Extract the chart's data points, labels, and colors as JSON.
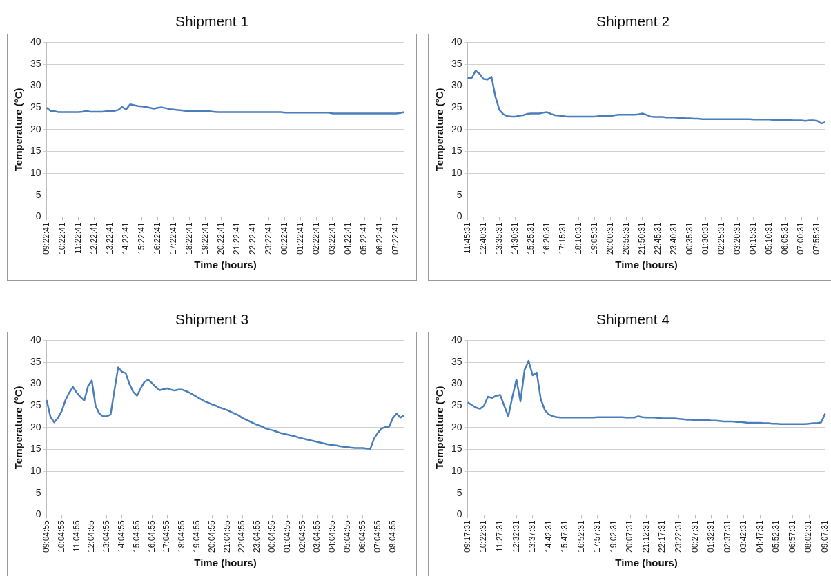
{
  "chart_data": [
    {
      "type": "line",
      "title": "Shipment 1",
      "xlabel": "Time (hours)",
      "ylabel": "Temperature (°C)",
      "color": "#4a7ebb",
      "marker": "none",
      "grid": "y",
      "ylim": [
        0,
        40
      ],
      "yticks": [
        0,
        5,
        10,
        15,
        20,
        25,
        30,
        35,
        40
      ],
      "categories": [
        "09:22:41",
        null,
        null,
        null,
        "10:22:41",
        null,
        null,
        null,
        "11:22:41",
        null,
        null,
        null,
        "12:22:41",
        null,
        null,
        null,
        "13:22:41",
        null,
        null,
        null,
        "14:22:41",
        null,
        null,
        null,
        "15:22:41",
        null,
        null,
        null,
        "16:22:41",
        null,
        null,
        null,
        "17:22:41",
        null,
        null,
        null,
        "18:22:41",
        null,
        null,
        null,
        "19:22:41",
        null,
        null,
        null,
        "20:22:41",
        null,
        null,
        null,
        "21:22:41",
        null,
        null,
        null,
        "22:22:41",
        null,
        null,
        null,
        "23:22:41",
        null,
        null,
        null,
        "00:22:41",
        null,
        null,
        null,
        "01:22:41",
        null,
        null,
        null,
        "02:22:41",
        null,
        null,
        null,
        "03:22:41",
        null,
        null,
        null,
        "04:22:41",
        null,
        null,
        null,
        "05:22:41",
        null,
        null,
        null,
        "06:22:41",
        null,
        null,
        null,
        "07:22:41",
        null,
        null
      ],
      "values": [
        25,
        24.3,
        24.2,
        24,
        24,
        24,
        24,
        24,
        24,
        24.1,
        24.3,
        24.1,
        24.1,
        24.1,
        24.1,
        24.2,
        24.3,
        24.3,
        24.5,
        25.2,
        24.6,
        25.8,
        25.6,
        25.4,
        25.3,
        25.2,
        25,
        24.8,
        25,
        25.1,
        24.9,
        24.7,
        24.6,
        24.5,
        24.4,
        24.3,
        24.3,
        24.3,
        24.2,
        24.2,
        24.2,
        24.2,
        24.1,
        24,
        24,
        24,
        24,
        24,
        24,
        24,
        24,
        24,
        24,
        24,
        24,
        24,
        24,
        24,
        24,
        24,
        23.9,
        23.9,
        23.9,
        23.9,
        23.9,
        23.9,
        23.9,
        23.9,
        23.9,
        23.9,
        23.9,
        23.9,
        23.7,
        23.7,
        23.7,
        23.7,
        23.7,
        23.7,
        23.7,
        23.7,
        23.7,
        23.7,
        23.7,
        23.7,
        23.7,
        23.7,
        23.7,
        23.7,
        23.7,
        23.8,
        24
      ]
    },
    {
      "type": "line",
      "title": "Shipment 2",
      "xlabel": "Time (hours)",
      "ylabel": "Temperature (°C)",
      "color": "#4a7ebb",
      "marker": "none",
      "grid": "y",
      "ylim": [
        0,
        40
      ],
      "yticks": [
        0,
        5,
        10,
        15,
        20,
        25,
        30,
        35,
        40
      ],
      "categories": [
        "11:45:31",
        null,
        null,
        null,
        "12:40:31",
        null,
        null,
        null,
        "13:35:31",
        null,
        null,
        null,
        "14:30:31",
        null,
        null,
        null,
        "15:25:31",
        null,
        null,
        null,
        "16:20:31",
        null,
        null,
        null,
        "17:15:31",
        null,
        null,
        null,
        "18:10:31",
        null,
        null,
        null,
        "19:05:31",
        null,
        null,
        null,
        "20:00:31",
        null,
        null,
        null,
        "20:55:31",
        null,
        null,
        null,
        "21:50:31",
        null,
        null,
        null,
        "22:45:31",
        null,
        null,
        null,
        "23:40:31",
        null,
        null,
        null,
        "00:35:31",
        null,
        null,
        null,
        "01:30:31",
        null,
        null,
        null,
        "02:25:31",
        null,
        null,
        null,
        "03:20:31",
        null,
        null,
        null,
        "04:15:31",
        null,
        null,
        null,
        "05:10:31",
        null,
        null,
        null,
        "06:05:31",
        null,
        null,
        null,
        "07:00:31",
        null,
        null,
        null,
        "07:55:31",
        null,
        null
      ],
      "values": [
        31.8,
        31.8,
        33.5,
        32.8,
        31.6,
        31.5,
        32.1,
        27.5,
        24.5,
        23.5,
        23.1,
        23,
        23,
        23.2,
        23.3,
        23.6,
        23.7,
        23.7,
        23.7,
        23.9,
        24,
        23.6,
        23.3,
        23.2,
        23.1,
        23,
        23,
        23,
        23,
        23,
        23,
        23,
        23,
        23.1,
        23.1,
        23.1,
        23.1,
        23.3,
        23.4,
        23.4,
        23.4,
        23.4,
        23.4,
        23.5,
        23.7,
        23.4,
        23,
        22.9,
        22.9,
        22.9,
        22.8,
        22.8,
        22.8,
        22.7,
        22.7,
        22.6,
        22.6,
        22.5,
        22.5,
        22.4,
        22.4,
        22.4,
        22.4,
        22.4,
        22.4,
        22.4,
        22.4,
        22.4,
        22.4,
        22.4,
        22.4,
        22.4,
        22.3,
        22.3,
        22.3,
        22.3,
        22.3,
        22.2,
        22.2,
        22.2,
        22.2,
        22.2,
        22.1,
        22.1,
        22.1,
        22,
        22.1,
        22.1,
        22,
        21.4,
        21.7
      ]
    },
    {
      "type": "line",
      "title": "Shipment 3",
      "xlabel": "Time (hours)",
      "ylabel": "Temperature (°C)",
      "color": "#4a7ebb",
      "marker": "none",
      "grid": "y",
      "ylim": [
        0,
        40
      ],
      "yticks": [
        0,
        5,
        10,
        15,
        20,
        25,
        30,
        35,
        40
      ],
      "categories": [
        "09:04:55",
        null,
        null,
        null,
        "10:04:55",
        null,
        null,
        null,
        "11:04:55",
        null,
        null,
        null,
        "12:04:55",
        null,
        null,
        null,
        "13:04:55",
        null,
        null,
        null,
        "14:04:55",
        null,
        null,
        null,
        "15:04:55",
        null,
        null,
        null,
        "16:04:55",
        null,
        null,
        null,
        "17:04:55",
        null,
        null,
        null,
        "18:04:55",
        null,
        null,
        null,
        "19:04:55",
        null,
        null,
        null,
        "20:04:55",
        null,
        null,
        null,
        "21:04:55",
        null,
        null,
        null,
        "22:04:55",
        null,
        null,
        null,
        "23:04:55",
        null,
        null,
        null,
        "00:04:55",
        null,
        null,
        null,
        "01:04:55",
        null,
        null,
        null,
        "02:04:55",
        null,
        null,
        null,
        "03:04:55",
        null,
        null,
        null,
        "04:04:55",
        null,
        null,
        null,
        "05:04:55",
        null,
        null,
        null,
        "06:04:55",
        null,
        null,
        null,
        "07:04:55",
        null,
        null,
        null,
        "08:04:55",
        null,
        null,
        null
      ],
      "values": [
        26.3,
        22.5,
        21.2,
        22.2,
        23.8,
        26.3,
        28,
        29.3,
        28,
        27,
        26.2,
        29.5,
        30.8,
        25,
        23.2,
        22.6,
        22.6,
        23,
        28.5,
        33.8,
        32.8,
        32.5,
        30,
        28.2,
        27.3,
        29,
        30.5,
        31,
        30.2,
        29.3,
        28.6,
        28.8,
        29,
        28.7,
        28.5,
        28.7,
        28.7,
        28.4,
        28,
        27.5,
        27,
        26.5,
        26,
        25.7,
        25.3,
        25,
        24.6,
        24.3,
        24,
        23.6,
        23.2,
        22.8,
        22.2,
        21.8,
        21.4,
        21,
        20.6,
        20.3,
        19.9,
        19.6,
        19.4,
        19.1,
        18.8,
        18.6,
        18.4,
        18.2,
        18,
        17.7,
        17.5,
        17.3,
        17.1,
        16.9,
        16.7,
        16.5,
        16.3,
        16.1,
        16,
        15.9,
        15.7,
        15.6,
        15.5,
        15.4,
        15.3,
        15.3,
        15.3,
        15.2,
        15.1,
        17.5,
        18.8,
        19.8,
        20.1,
        20.2,
        22.2,
        23.2,
        22.3,
        22.8
      ]
    },
    {
      "type": "line",
      "title": "Shipment 4",
      "xlabel": "Time (hours)",
      "ylabel": "Temperature (°C)",
      "color": "#4a7ebb",
      "marker": "none",
      "grid": "y",
      "ylim": [
        0,
        40
      ],
      "yticks": [
        0,
        5,
        10,
        15,
        20,
        25,
        30,
        35,
        40
      ],
      "categories": [
        "09:17:31",
        null,
        null,
        null,
        "10:22:31",
        null,
        null,
        null,
        "11:27:31",
        null,
        null,
        null,
        "12:32:31",
        null,
        null,
        null,
        "13:37:31",
        null,
        null,
        null,
        "14:42:31",
        null,
        null,
        null,
        "15:47:31",
        null,
        null,
        null,
        "16:52:31",
        null,
        null,
        null,
        "17:57:31",
        null,
        null,
        null,
        "19:02:31",
        null,
        null,
        null,
        "20:07:31",
        null,
        null,
        null,
        "21:12:31",
        null,
        null,
        null,
        "22:17:31",
        null,
        null,
        null,
        "23:22:31",
        null,
        null,
        null,
        "00:27:31",
        null,
        null,
        null,
        "01:32:31",
        null,
        null,
        null,
        "02:37:31",
        null,
        null,
        null,
        "03:42:31",
        null,
        null,
        null,
        "04:47:31",
        null,
        null,
        null,
        "05:52:31",
        null,
        null,
        null,
        "06:57:31",
        null,
        null,
        null,
        "08:02:31",
        null,
        null,
        null,
        "09:07:31"
      ],
      "values": [
        25.8,
        25.2,
        24.6,
        24.3,
        25,
        27.1,
        26.8,
        27.3,
        27.5,
        25,
        22.6,
        27,
        31,
        26,
        33.2,
        35.3,
        32,
        32.6,
        26.5,
        24,
        23,
        22.6,
        22.4,
        22.3,
        22.3,
        22.3,
        22.3,
        22.3,
        22.3,
        22.3,
        22.3,
        22.3,
        22.4,
        22.4,
        22.4,
        22.4,
        22.4,
        22.4,
        22.4,
        22.3,
        22.3,
        22.3,
        22.6,
        22.4,
        22.3,
        22.3,
        22.3,
        22.2,
        22.1,
        22.1,
        22.1,
        22.1,
        22,
        21.9,
        21.8,
        21.8,
        21.7,
        21.7,
        21.7,
        21.7,
        21.6,
        21.6,
        21.5,
        21.4,
        21.4,
        21.4,
        21.3,
        21.3,
        21.2,
        21.1,
        21.1,
        21.1,
        21.1,
        21,
        21,
        20.9,
        20.9,
        20.8,
        20.8,
        20.8,
        20.8,
        20.8,
        20.8,
        20.8,
        20.9,
        21,
        21,
        21.2,
        23.2
      ]
    }
  ]
}
